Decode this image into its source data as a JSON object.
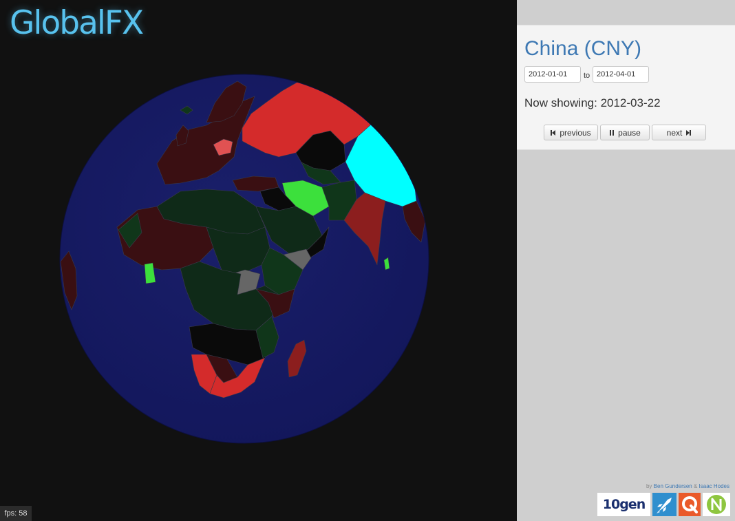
{
  "app": {
    "title": "GlobalFX"
  },
  "status": {
    "fps_label": "fps:",
    "fps_value": "58"
  },
  "panel": {
    "currency_title": "China (CNY)",
    "start_date": "2012-01-01",
    "to_label": "to",
    "end_date": "2012-04-01",
    "now_showing_label": "Now showing:",
    "now_showing_date": "2012-03-22",
    "controls": {
      "previous_label": "previous",
      "pause_label": "pause",
      "next_label": "next"
    }
  },
  "credits": {
    "by": "by",
    "author1": "Ben Gundersen",
    "amp": "&",
    "author2": "Isaac Hodes"
  },
  "logos": {
    "tengen_text": "10gen",
    "icons": [
      "rocket-logo-icon",
      "q-logo-icon",
      "n-logo-icon"
    ]
  },
  "colors": {
    "title": "#58c2ee",
    "ocean": "#161a5c",
    "selected_country": "#00ffff",
    "strong_positive": "#3ce03c",
    "positive": "#10361a",
    "neutral": "#111111",
    "negative": "#3a0f12",
    "strong_negative": "#d42b2b",
    "no_data": "#666666",
    "accent": "#3d78b3"
  }
}
